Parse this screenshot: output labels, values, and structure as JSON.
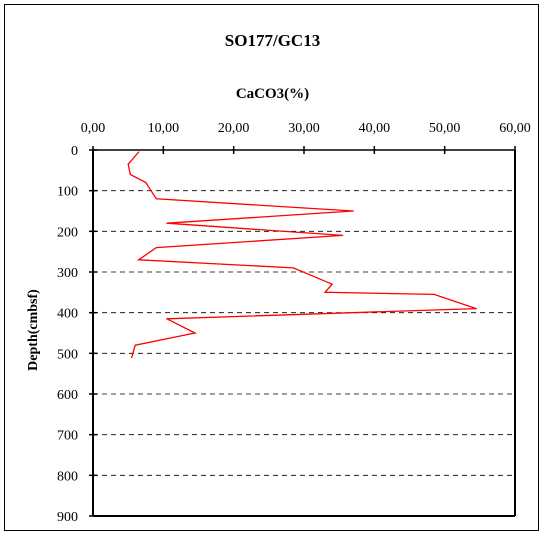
{
  "chart_data": {
    "type": "line",
    "title": "SO177/GC13",
    "xlabel": "CaCO3(%)",
    "ylabel": "Depth(cmbsf)",
    "x_axis_position": "top",
    "y_axis_reversed": true,
    "xlim": [
      0,
      60
    ],
    "ylim": [
      0,
      900
    ],
    "x_ticks": [
      "0,00",
      "10,00",
      "20,00",
      "30,00",
      "40,00",
      "50,00",
      "60,00"
    ],
    "y_ticks": [
      "0",
      "100",
      "200",
      "300",
      "400",
      "500",
      "600",
      "700",
      "800",
      "900"
    ],
    "grid": "horizontal dashed",
    "series": [
      {
        "color": "#ff0000",
        "points": [
          {
            "x": 6.5,
            "y": 5
          },
          {
            "x": 5.0,
            "y": 35
          },
          {
            "x": 5.3,
            "y": 60
          },
          {
            "x": 7.5,
            "y": 80
          },
          {
            "x": 9.0,
            "y": 120
          },
          {
            "x": 37.0,
            "y": 150
          },
          {
            "x": 10.5,
            "y": 180
          },
          {
            "x": 35.5,
            "y": 210
          },
          {
            "x": 9.0,
            "y": 240
          },
          {
            "x": 6.5,
            "y": 270
          },
          {
            "x": 28.5,
            "y": 290
          },
          {
            "x": 34.0,
            "y": 330
          },
          {
            "x": 33.0,
            "y": 350
          },
          {
            "x": 48.5,
            "y": 355
          },
          {
            "x": 54.5,
            "y": 390
          },
          {
            "x": 10.5,
            "y": 415
          },
          {
            "x": 14.5,
            "y": 450
          },
          {
            "x": 6.0,
            "y": 480
          },
          {
            "x": 5.5,
            "y": 510
          }
        ]
      }
    ]
  }
}
